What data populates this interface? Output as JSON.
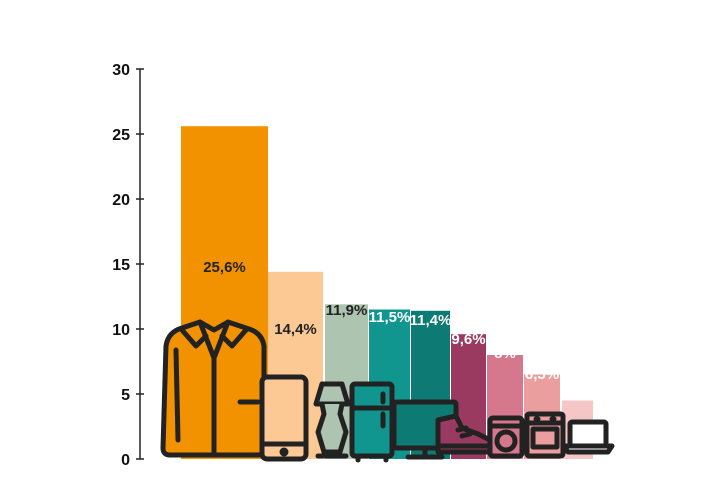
{
  "chart_data": {
    "type": "bar",
    "title": "",
    "xlabel": "",
    "ylabel": "",
    "ylim": [
      0,
      30
    ],
    "yticks": [
      "0",
      "5",
      "10",
      "15",
      "20",
      "25",
      "30"
    ],
    "grid": false,
    "legend": "none",
    "values": [
      25.6,
      14.4,
      11.9,
      11.5,
      11.4,
      9.6,
      8,
      6.5,
      4.5
    ],
    "labels": [
      "25,6%",
      "14,4%",
      "11,9%",
      "11,5%",
      "11,4%",
      "9,6%",
      "8%",
      "6,5%",
      "4,5%"
    ],
    "icons": [
      "shirt-icon",
      "smartphone-icon",
      "lamp-icon",
      "refrigerator-icon",
      "monitor-icon",
      "sneaker-icon",
      "washing-machine-icon",
      "oven-icon",
      "laptop-icon"
    ],
    "colors": [
      "#f39200",
      "#fcc995",
      "#adc4b0",
      "#11958f",
      "#0e7a74",
      "#9b3a60",
      "#d5788e",
      "#ea9e9e",
      "#f4c6c6"
    ],
    "label_colors": [
      "#222222",
      "#222222",
      "#222222",
      "#ffffff",
      "#ffffff",
      "#ffffff",
      "#ffffff",
      "#ffffff",
      "#ffffff"
    ]
  }
}
